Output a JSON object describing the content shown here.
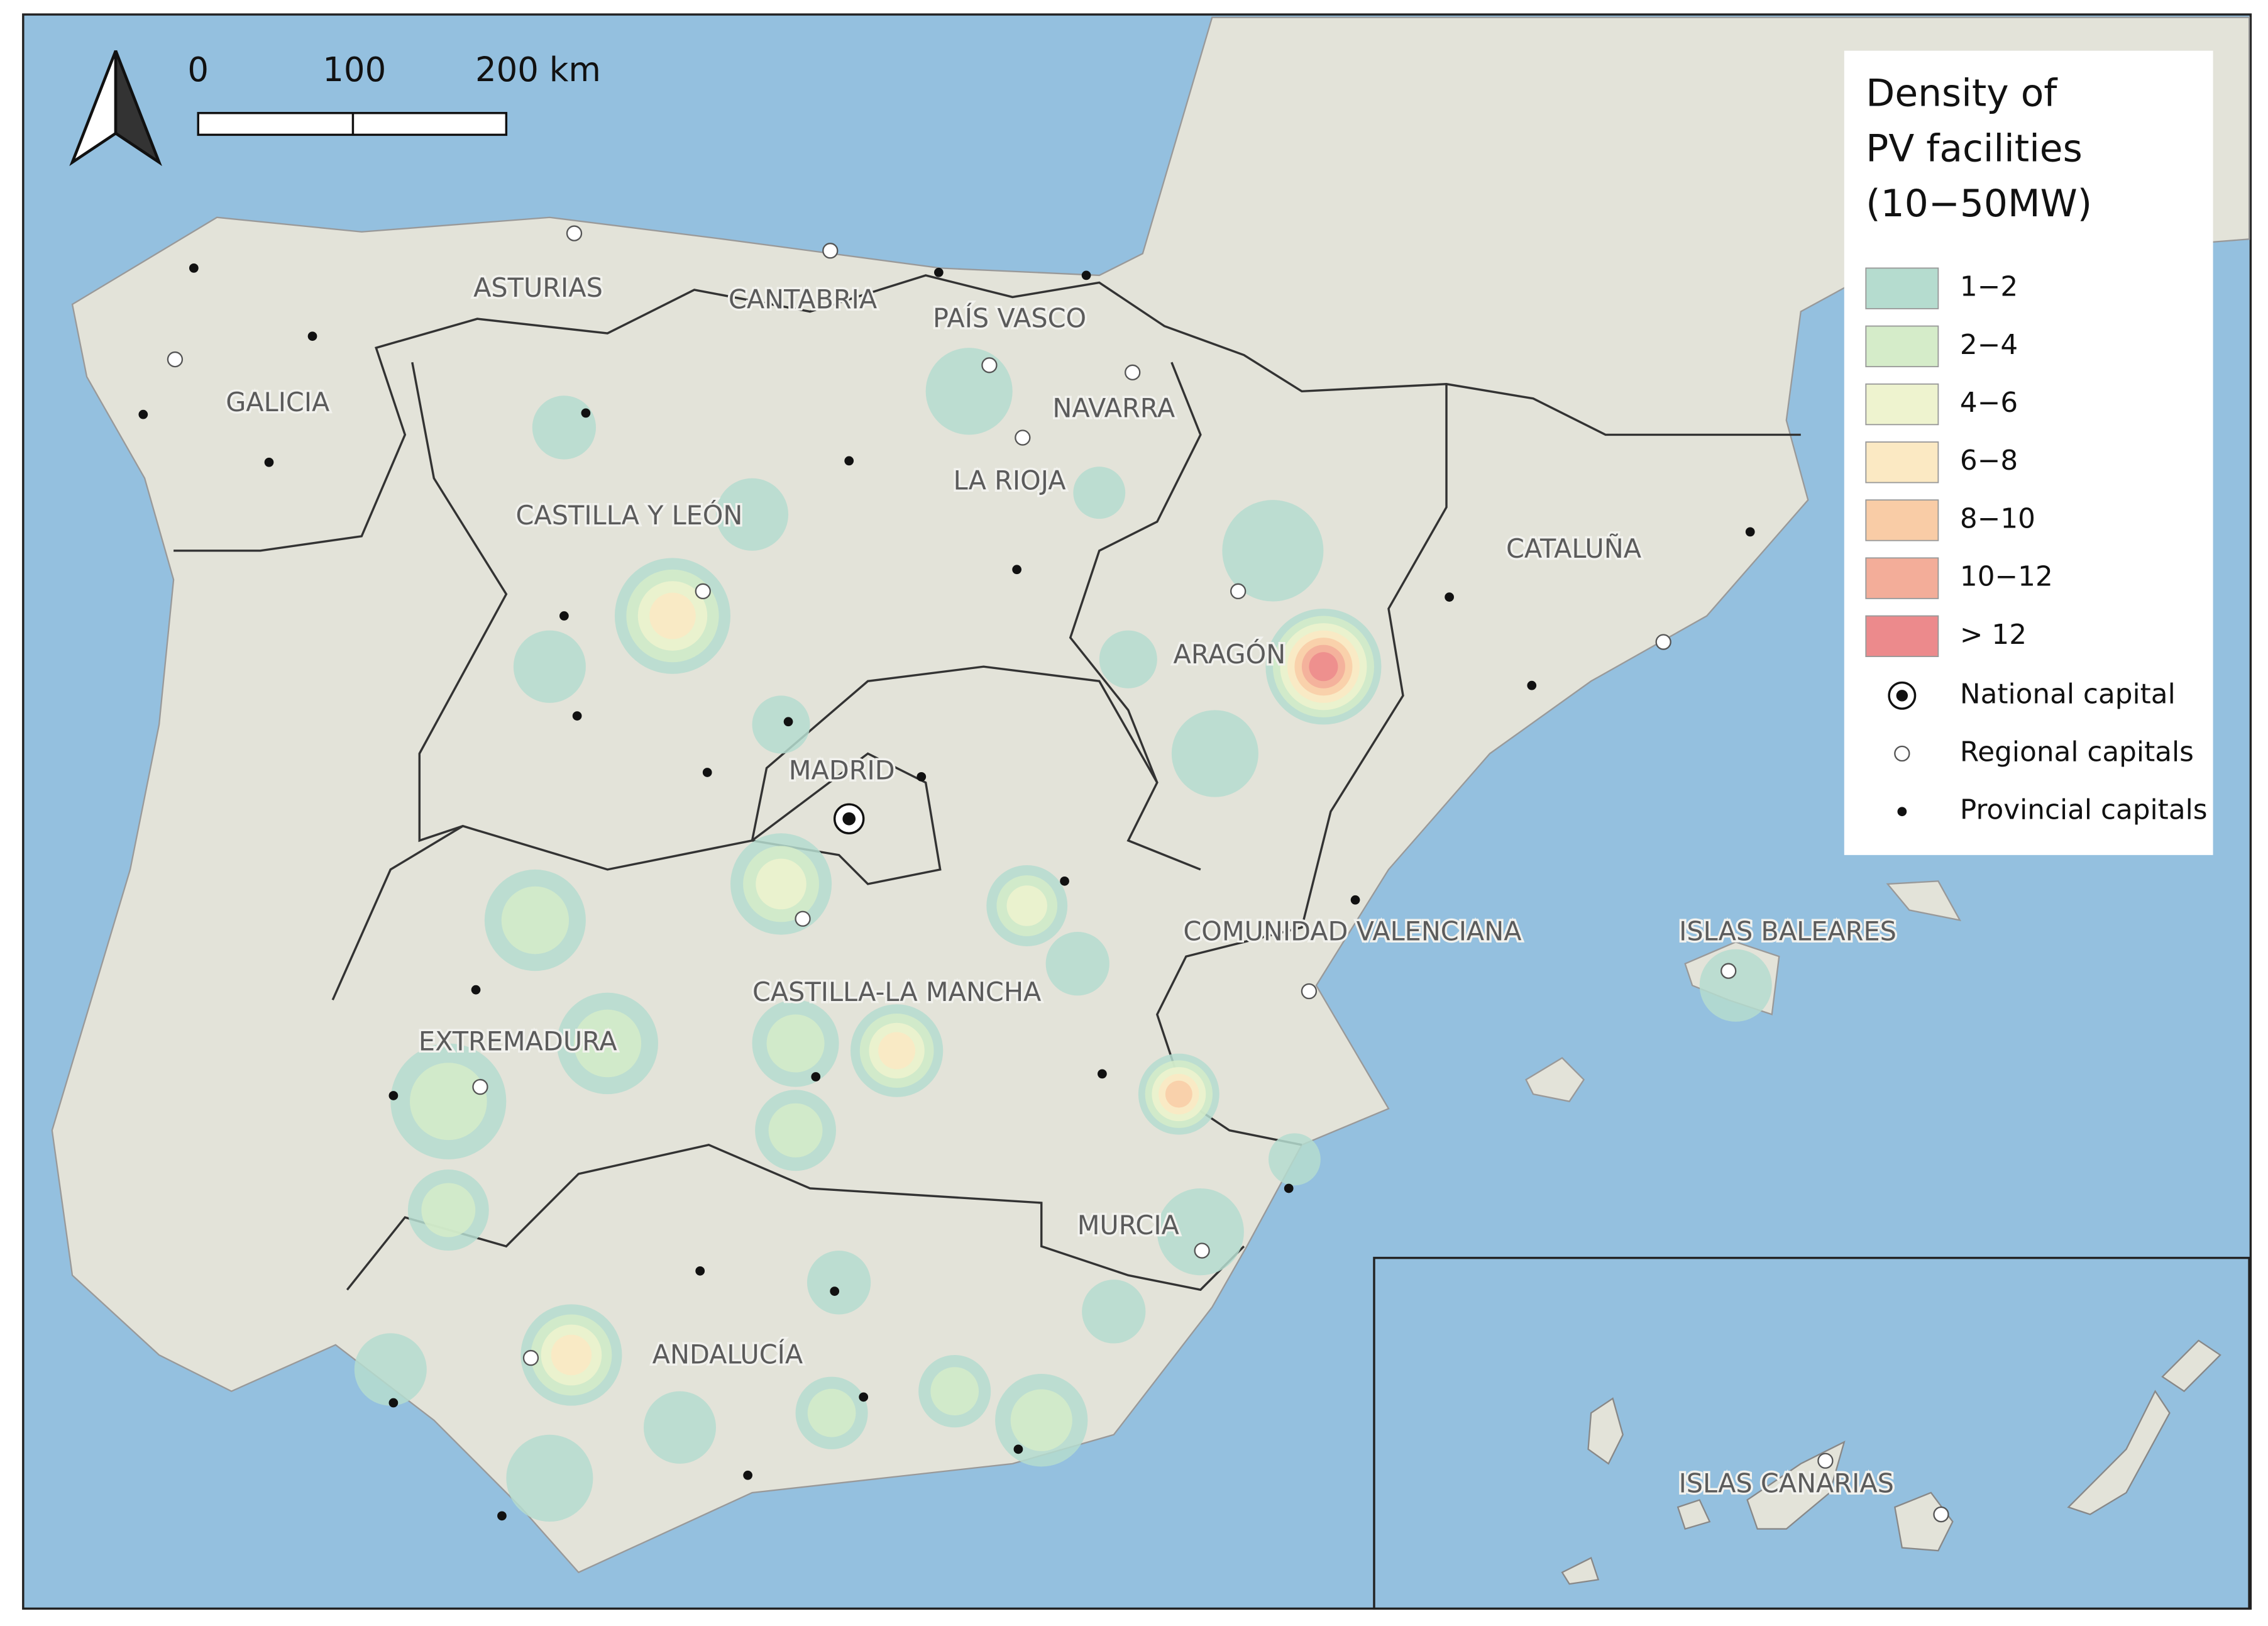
{
  "map": {
    "scale_bar": [
      "0",
      "100",
      "200 km"
    ],
    "legend": {
      "title": [
        "Density of",
        "PV facilities",
        "(10−50MW)"
      ],
      "items": [
        {
          "label": "1−2",
          "color": "#b5dccf"
        },
        {
          "label": "2−4",
          "color": "#d5ecc9"
        },
        {
          "label": "4−6",
          "color": "#eef3cf"
        },
        {
          "label": "6−8",
          "color": "#fbe9c3"
        },
        {
          "label": "8−10",
          "color": "#f9cca6"
        },
        {
          "label": "10−12",
          "color": "#f3ad99"
        },
        {
          "label": "> 12",
          "color": "#ec8a8c"
        }
      ],
      "symbols": [
        "National capital",
        "Regional capitals",
        "Provincial capitals"
      ]
    },
    "regions": [
      "ASTURIAS",
      "CANTABRIA",
      "PAÍS VASCO",
      "GALICIA",
      "NAVARRA",
      "LA RIOJA",
      "CASTILLA Y LEÓN",
      "CATALUÑA",
      "ARAGÓN",
      "MADRID",
      "COMUNIDAD VALENCIANA",
      "ISLAS BALEARES",
      "CASTILLA-LA MANCHA",
      "EXTREMADURA",
      "MURCIA",
      "ANDALUCÍA",
      "ISLAS CANARIAS"
    ]
  }
}
